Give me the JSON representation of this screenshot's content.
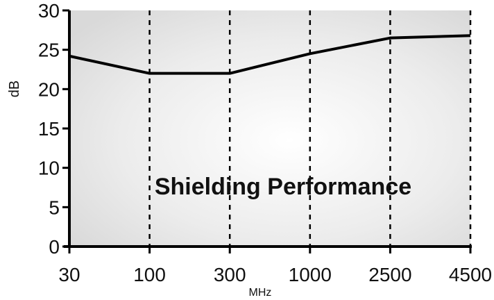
{
  "chart_data": {
    "type": "line",
    "title": "Shielding Performance",
    "xlabel": "MHz",
    "ylabel": "dB",
    "x_scale": "categorical",
    "categories": [
      "30",
      "100",
      "300",
      "1000",
      "2500",
      "4500"
    ],
    "ylim": [
      0,
      30
    ],
    "yticks": [
      0,
      5,
      10,
      15,
      20,
      25,
      30
    ],
    "grid": "vertical dashed",
    "colors": {
      "plot_background": "#e6e6e6",
      "line": "#000000",
      "grid": "#000000"
    },
    "series": [
      {
        "x": [
          "30",
          "100",
          "300",
          "1000",
          "2500",
          "4500"
        ],
        "values": [
          24.2,
          22.0,
          22.0,
          24.5,
          26.5,
          26.8
        ]
      }
    ]
  }
}
